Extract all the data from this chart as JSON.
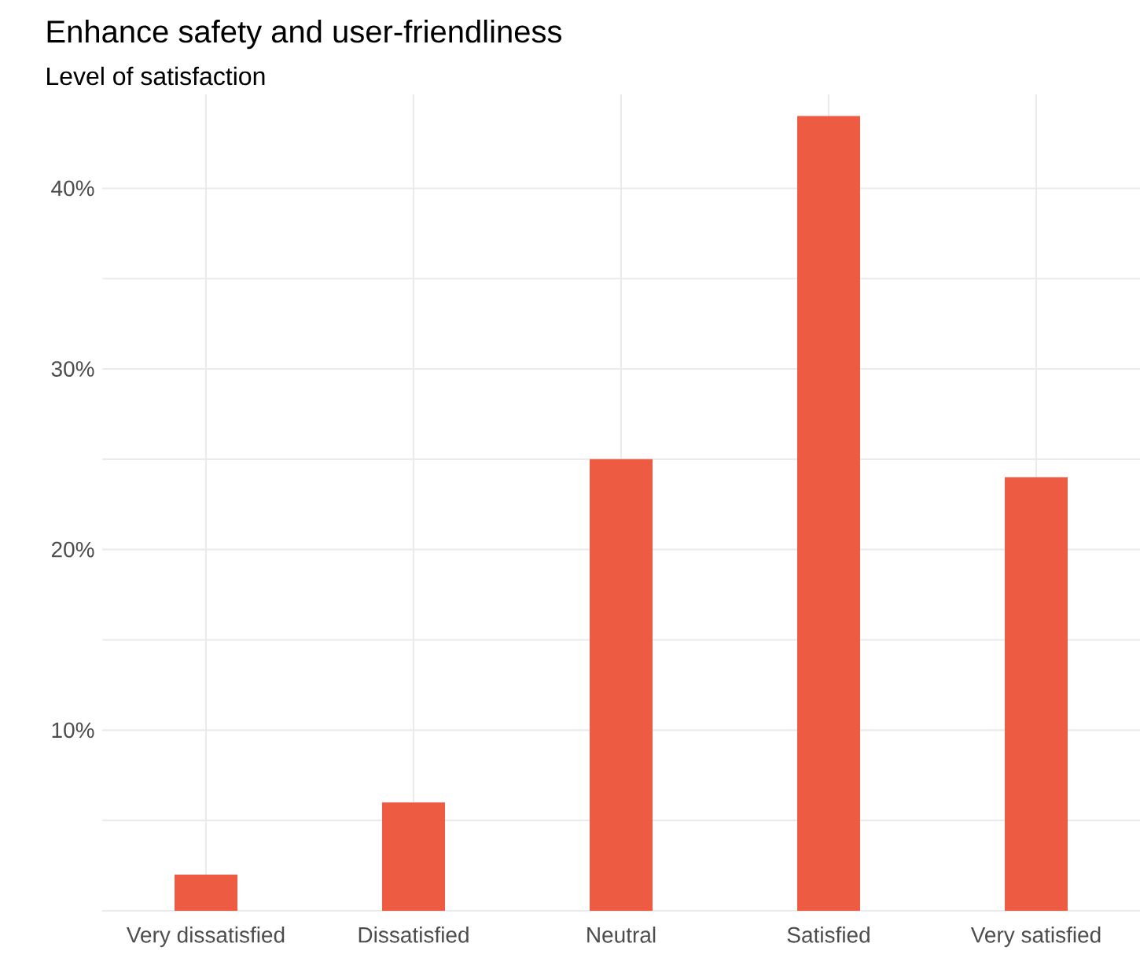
{
  "chart_data": {
    "type": "bar",
    "title": "Enhance safety and user-friendliness",
    "subtitle": "Level of satisfaction",
    "categories": [
      "Very dissatisfied",
      "Dissatisfied",
      "Neutral",
      "Satisfied",
      "Very satisfied"
    ],
    "values": [
      2,
      6,
      25,
      44,
      24
    ],
    "color": "#ee5b43",
    "ylim": [
      0,
      45.2
    ],
    "yticks": [
      {
        "value": 0,
        "label": null
      },
      {
        "value": 5,
        "label": null
      },
      {
        "value": 10,
        "label": "10%"
      },
      {
        "value": 15,
        "label": null
      },
      {
        "value": 20,
        "label": "20%"
      },
      {
        "value": 25,
        "label": null
      },
      {
        "value": 30,
        "label": "30%"
      },
      {
        "value": 35,
        "label": null
      },
      {
        "value": 40,
        "label": "40%"
      }
    ],
    "grid": true
  }
}
